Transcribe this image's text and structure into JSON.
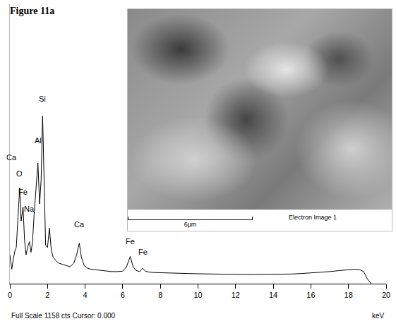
{
  "chart_data": {
    "type": "line",
    "title": "Figure 11a",
    "x_label": "keV",
    "footer": "Full Scale 1158 cts Cursor: 0.000",
    "color": "#000000",
    "x": [
      0.0,
      0.1,
      0.2,
      0.28,
      0.34,
      0.42,
      0.52,
      0.6,
      0.7,
      0.78,
      0.86,
      0.94,
      1.04,
      1.12,
      1.2,
      1.3,
      1.4,
      1.49,
      1.58,
      1.66,
      1.74,
      1.82,
      1.9,
      2.0,
      2.1,
      2.2,
      2.3,
      2.45,
      2.6,
      2.8,
      3.0,
      3.2,
      3.4,
      3.55,
      3.69,
      3.8,
      3.95,
      4.1,
      4.3,
      4.5,
      4.8,
      5.1,
      5.4,
      5.7,
      6.0,
      6.2,
      6.4,
      6.55,
      6.7,
      6.9,
      7.06,
      7.2,
      7.4,
      7.7,
      8.0,
      8.5,
      9.0,
      9.5,
      10,
      10.5,
      11,
      11.5,
      12,
      12.5,
      13,
      13.5,
      14,
      14.5,
      15,
      15.5,
      16,
      16.5,
      17,
      17.5,
      18,
      18.3,
      18.6,
      18.8,
      19.0,
      19.2
    ],
    "values": [
      120,
      60,
      110,
      140,
      150,
      250,
      397,
      260,
      318,
      180,
      120,
      150,
      174,
      130,
      170,
      300,
      420,
      500,
      330,
      430,
      695,
      420,
      160,
      150,
      230,
      140,
      110,
      95,
      85,
      80,
      75,
      70,
      85,
      120,
      168,
      110,
      75,
      65,
      60,
      58,
      55,
      52,
      50,
      50,
      52,
      70,
      113,
      70,
      55,
      50,
      64,
      52,
      48,
      46,
      45,
      44,
      42,
      42,
      41,
      40,
      40,
      39,
      39,
      38,
      38,
      38,
      38,
      39,
      40,
      42,
      44,
      47,
      50,
      54,
      58,
      60,
      58,
      50,
      20,
      0
    ],
    "xlim": [
      0,
      20
    ],
    "xticks": [
      0,
      2,
      4,
      6,
      8,
      10,
      12,
      14,
      16,
      18,
      20
    ],
    "ylim": [
      0,
      1158
    ],
    "grid": false,
    "tick_labels": "x",
    "annotations": [
      {
        "text": "Ca",
        "x": 0.1,
        "y": 500
      },
      {
        "text": "O",
        "x": 0.52,
        "y": 434
      },
      {
        "text": "Fe",
        "x": 0.7,
        "y": 356
      },
      {
        "text": "Na",
        "x": 1.04,
        "y": 287
      },
      {
        "text": "Al",
        "x": 1.49,
        "y": 570
      },
      {
        "text": "Si",
        "x": 1.74,
        "y": 744
      },
      {
        "text": "Ca",
        "x": 3.69,
        "y": 223
      },
      {
        "text": "Fe",
        "x": 6.4,
        "y": 153
      },
      {
        "text": "Fe",
        "x": 7.06,
        "y": 107
      }
    ],
    "inset": {
      "scale_bar": "6µm",
      "caption": "Electron Image 1"
    }
  }
}
